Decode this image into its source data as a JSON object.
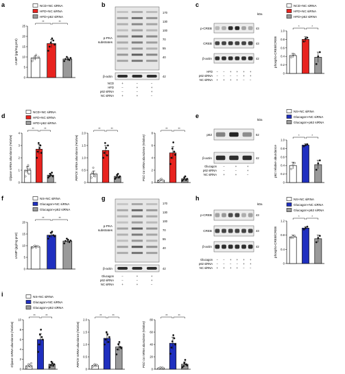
{
  "colors": {
    "white_bar": "#ffffff",
    "red": "#e8231f",
    "blue": "#1f2fbf",
    "grey": "#9a9a9a",
    "ink": "#111111"
  },
  "panels": {
    "a": {
      "letter": "a",
      "legend": [
        "NCD+NC siRNA",
        "HFD+NC siRNA",
        "HFD+p62 siRNA"
      ],
      "ylabel": "cAMP (pg/mg prot)",
      "ticks": [
        "0",
        "5",
        "10",
        "15",
        "20",
        "25"
      ],
      "sig": [
        "**",
        "**"
      ]
    },
    "b": {
      "letter": "b",
      "blot_label": [
        "p-PKA",
        "substrates"
      ],
      "mw": [
        "170",
        "130",
        "100",
        "70",
        "55",
        "40"
      ],
      "actin_label": "β-actin",
      "actin_mw": "42",
      "conditions": [
        {
          "name": "NCD",
          "marks": [
            "+",
            "−",
            "−"
          ]
        },
        {
          "name": "HFD",
          "marks": [
            "−",
            "+",
            "+"
          ]
        },
        {
          "name": "p62 siRNA",
          "marks": [
            "−",
            "−",
            "+"
          ]
        },
        {
          "name": "NC siRNA",
          "marks": [
            "+",
            "+",
            "−"
          ]
        }
      ]
    },
    "c": {
      "letter": "c",
      "kda": "kDa",
      "bands": [
        "p-CREB",
        "CREB",
        "β-actin"
      ],
      "mw": [
        "43",
        "43",
        "42"
      ],
      "conditions": [
        {
          "name": "HFD",
          "marks": [
            "−",
            "−",
            "+",
            "+",
            "+",
            "+"
          ]
        },
        {
          "name": "p62 siRNA",
          "marks": [
            "−",
            "−",
            "−",
            "−",
            "+",
            "+"
          ]
        },
        {
          "name": "NC siRNA",
          "marks": [
            "+",
            "+",
            "+",
            "+",
            "−",
            "−"
          ]
        }
      ],
      "legend": [
        "NCD+NC siRNA",
        "HFD+NC siRNA",
        "HFD+p62 siRNA"
      ],
      "ylabel": "phospho-CREB/CREB",
      "ticks": [
        "0",
        "0.2",
        "0.4",
        "0.6",
        "0.8",
        "1.0"
      ],
      "sig": [
        "*",
        "*"
      ]
    },
    "d": {
      "letter": "d",
      "legend": [
        "NCD+NC siRNA",
        "HFD+NC siRNA",
        "HFD+p62 siRNA"
      ],
      "ylabels": [
        "Glipase mRNA abundance (relative)",
        "PEPCK mRNA abundance (relative)",
        "PGC-1α mRNA abundance (relative)"
      ],
      "ticks": [
        [
          "0",
          "1",
          "2",
          "3",
          "4"
        ],
        [
          "0",
          "0.5",
          "1.0",
          "1.5",
          "2.0"
        ],
        [
          "0",
          "2",
          "4",
          "6",
          "8"
        ]
      ],
      "sig": [
        "**",
        "**"
      ]
    },
    "e": {
      "letter": "e",
      "kda": "kDa",
      "bands": [
        "p62",
        "β-actin"
      ],
      "mw": [
        "52",
        "42"
      ],
      "conditions": [
        {
          "name": "Glucagon",
          "marks": [
            "−",
            "+",
            "+"
          ]
        },
        {
          "name": "p62 siRNA",
          "marks": [
            "−",
            "−",
            "+"
          ]
        },
        {
          "name": "NC siRNA",
          "marks": [
            "+",
            "+",
            "−"
          ]
        }
      ],
      "legend": [
        "NS+NC siRNA",
        "Glucagon+NC siRNA",
        "Glucagon+p62 siRNA"
      ],
      "ylabel": "p62 relative abundance",
      "ticks": [
        "0",
        "0.2",
        "0.4",
        "0.6",
        "0.8",
        "1.0"
      ],
      "sig": [
        "*",
        "*"
      ]
    },
    "f": {
      "letter": "f",
      "legend": [
        "NS+NC siRNA",
        "Glucagon+NC siRNA",
        "Glucagon+p62 siRNA"
      ],
      "ylabel": "cAMP (pg/mg prot)",
      "ticks": [
        "0",
        "5",
        "10",
        "15",
        "20"
      ],
      "sig": [
        "**",
        "**"
      ]
    },
    "g": {
      "letter": "g",
      "blot_label": [
        "p-PKA",
        "substrates"
      ],
      "mw": [
        "170",
        "130",
        "100",
        "70",
        "55",
        "40"
      ],
      "actin_label": "β-actin",
      "actin_mw": "42",
      "conditions": [
        {
          "name": "Glucagon",
          "marks": [
            "−",
            "+",
            "+"
          ]
        },
        {
          "name": "p62 siRNA",
          "marks": [
            "−",
            "−",
            "+"
          ]
        },
        {
          "name": "NC siRNA",
          "marks": [
            "+",
            "+",
            "−"
          ]
        }
      ]
    },
    "h": {
      "letter": "h",
      "kda": "kDa",
      "bands": [
        "p-CREB",
        "CREB",
        "β-actin"
      ],
      "mw": [
        "43",
        "43",
        "42"
      ],
      "conditions": [
        {
          "name": "Glucagon",
          "marks": [
            "−",
            "−",
            "+",
            "+",
            "+",
            "+"
          ]
        },
        {
          "name": "p62 siRNA",
          "marks": [
            "−",
            "−",
            "−",
            "−",
            "+",
            "+"
          ]
        },
        {
          "name": "NC siRNA",
          "marks": [
            "+",
            "+",
            "+",
            "+",
            "−",
            "−"
          ]
        }
      ],
      "legend": [
        "NS+NC siRNA",
        "Glucagon+NC siRNA",
        "Glucagon+p62 siRNA"
      ],
      "ylabel": "phospho-CREB/CREB",
      "ticks": [
        "0",
        "0.4",
        "0.8",
        "1.2"
      ],
      "sig": [
        "*",
        "*"
      ]
    },
    "i": {
      "letter": "i",
      "legend": [
        "NS+NC siRNA",
        "Glucagon+NC siRNA",
        "Glucagon+p62 siRNA"
      ],
      "ylabels": [
        "Glipase mRNA abundance (relative)",
        "PEPCK mRNA abundance (relative)",
        "PGC-1α mRNA abundance (relative)"
      ],
      "ticks": [
        [
          "0",
          "2",
          "4",
          "6",
          "8",
          "10"
        ],
        [
          "0",
          "0.5",
          "1.0",
          "1.5",
          "2.0"
        ],
        [
          "0",
          "20",
          "40",
          "60",
          "80"
        ]
      ],
      "sig": [
        "**",
        "**"
      ]
    }
  },
  "chart_data": [
    {
      "panel": "a",
      "type": "bar",
      "categories": [
        "NCD+NC siRNA",
        "HFD+NC siRNA",
        "HFD+p62 siRNA"
      ],
      "values": [
        9.5,
        16.5,
        9.0
      ],
      "errors": [
        1.0,
        2.0,
        0.8
      ],
      "points": [
        [
          8,
          9,
          10,
          11,
          9.5,
          10
        ],
        [
          13,
          15,
          17,
          19,
          18,
          16
        ],
        [
          8,
          9,
          10,
          9,
          8.5,
          9.5
        ]
      ],
      "ylim": [
        0,
        25
      ],
      "ylabel": "cAMP (pg/mg prot)",
      "colors": [
        "#ffffff",
        "#e8231f",
        "#9a9a9a"
      ]
    },
    {
      "panel": "c",
      "type": "bar",
      "categories": [
        "NCD+NC siRNA",
        "HFD+NC siRNA",
        "HFD+p62 siRNA"
      ],
      "values": [
        0.42,
        0.8,
        0.38
      ],
      "errors": [
        0.05,
        0.06,
        0.12
      ],
      "points": [
        [
          0.38,
          0.45,
          0.44
        ],
        [
          0.75,
          0.82,
          0.84
        ],
        [
          0.22,
          0.4,
          0.5
        ]
      ],
      "ylim": [
        0,
        1.0
      ],
      "ylabel": "phospho-CREB/CREB",
      "colors": [
        "#ffffff",
        "#e8231f",
        "#9a9a9a"
      ]
    },
    {
      "panel": "d1",
      "type": "bar",
      "categories": [
        "NCD+NC siRNA",
        "HFD+NC siRNA",
        "HFD+p62 siRNA"
      ],
      "values": [
        1.0,
        2.7,
        0.6
      ],
      "errors": [
        0.3,
        0.4,
        0.15
      ],
      "points": [
        [
          0.5,
          0.9,
          1.2,
          1.4,
          0.7,
          1.1
        ],
        [
          2.0,
          2.5,
          3.2,
          2.8,
          3.0,
          2.4
        ],
        [
          0.4,
          0.5,
          0.7,
          0.6,
          0.8,
          0.5
        ]
      ],
      "ylim": [
        0,
        4
      ],
      "ylabel": "Glipase mRNA abundance (relative)",
      "colors": [
        "#ffffff",
        "#e8231f",
        "#9a9a9a"
      ]
    },
    {
      "panel": "d2",
      "type": "bar",
      "categories": [
        "NCD+NC siRNA",
        "HFD+NC siRNA",
        "HFD+p62 siRNA"
      ],
      "values": [
        0.35,
        1.3,
        0.25
      ],
      "errors": [
        0.12,
        0.2,
        0.08
      ],
      "points": [
        [
          0.2,
          0.4,
          0.6,
          0.3,
          0.25,
          0.35
        ],
        [
          1.0,
          1.2,
          1.6,
          1.4,
          1.1,
          1.5
        ],
        [
          0.15,
          0.2,
          0.3,
          0.35,
          0.2,
          0.25
        ]
      ],
      "ylim": [
        0,
        2.0
      ],
      "ylabel": "PEPCK mRNA abundance (relative)",
      "colors": [
        "#ffffff",
        "#e8231f",
        "#9a9a9a"
      ]
    },
    {
      "panel": "d3",
      "type": "bar",
      "categories": [
        "NCD+NC siRNA",
        "HFD+NC siRNA",
        "HFD+p62 siRNA"
      ],
      "values": [
        0.4,
        4.8,
        0.6
      ],
      "errors": [
        0.15,
        1.0,
        0.3
      ],
      "points": [
        [
          0.2,
          0.3,
          0.5,
          0.6,
          0.4,
          0.3
        ],
        [
          3.0,
          4.0,
          5.5,
          6.5,
          5.0,
          4.5
        ],
        [
          0.3,
          0.5,
          0.8,
          1.0,
          0.4,
          0.6
        ]
      ],
      "ylim": [
        0,
        8
      ],
      "ylabel": "PGC-1α mRNA abundance (relative)",
      "colors": [
        "#ffffff",
        "#e8231f",
        "#9a9a9a"
      ]
    },
    {
      "panel": "e",
      "type": "bar",
      "categories": [
        "NS+NC siRNA",
        "Glucagon+NC siRNA",
        "Glucagon+p62 siRNA"
      ],
      "values": [
        0.4,
        0.88,
        0.42
      ],
      "errors": [
        0.08,
        0.03,
        0.1
      ],
      "points": [
        [
          0.32,
          0.42,
          0.46
        ],
        [
          0.85,
          0.88,
          0.9
        ],
        [
          0.3,
          0.45,
          0.52
        ]
      ],
      "ylim": [
        0,
        1.0
      ],
      "ylabel": "p62 relative abundance",
      "colors": [
        "#ffffff",
        "#1f2fbf",
        "#9a9a9a"
      ]
    },
    {
      "panel": "f",
      "type": "bar",
      "categories": [
        "NS+NC siRNA",
        "Glucagon+NC siRNA",
        "Glucagon+p62 siRNA"
      ],
      "values": [
        9.5,
        14.5,
        12.0
      ],
      "errors": [
        0.5,
        1.0,
        0.8
      ],
      "points": [
        [
          9,
          9.5,
          10,
          9.2,
          9.8,
          9.6
        ],
        [
          13,
          14,
          15.5,
          16,
          14.5,
          14
        ],
        [
          11,
          12,
          13,
          12.5,
          11.5,
          12.2
        ]
      ],
      "ylim": [
        0,
        20
      ],
      "ylabel": "cAMP (pg/mg prot)",
      "colors": [
        "#ffffff",
        "#1f2fbf",
        "#9a9a9a"
      ]
    },
    {
      "panel": "h",
      "type": "bar",
      "categories": [
        "NS+NC siRNA",
        "Glucagon+NC siRNA",
        "Glucagon+p62 siRNA"
      ],
      "values": [
        0.75,
        1.0,
        0.7
      ],
      "errors": [
        0.05,
        0.04,
        0.1
      ],
      "points": [
        [
          0.72,
          0.76,
          0.78
        ],
        [
          0.96,
          1.0,
          1.04
        ],
        [
          0.6,
          0.72,
          0.78
        ]
      ],
      "ylim": [
        0,
        1.2
      ],
      "ylabel": "phospho-CREB/CREB",
      "colors": [
        "#ffffff",
        "#1f2fbf",
        "#9a9a9a"
      ]
    },
    {
      "panel": "i1",
      "type": "bar",
      "categories": [
        "NS+NC siRNA",
        "Glucagon+NC siRNA",
        "Glucagon+p62 siRNA"
      ],
      "values": [
        0.7,
        6.0,
        1.0
      ],
      "errors": [
        0.3,
        1.2,
        0.5
      ],
      "points": [
        [
          0.3,
          0.6,
          1.0,
          0.8,
          0.5,
          1.2
        ],
        [
          3.5,
          5.0,
          7.0,
          8.0,
          6.5,
          6.0
        ],
        [
          0.4,
          0.8,
          1.5,
          1.2,
          0.7,
          1.0
        ]
      ],
      "ylim": [
        0,
        10
      ],
      "ylabel": "Glipase mRNA abundance (relative)",
      "colors": [
        "#ffffff",
        "#1f2fbf",
        "#9a9a9a"
      ]
    },
    {
      "panel": "i2",
      "type": "bar",
      "categories": [
        "NS+NC siRNA",
        "Glucagon+NC siRNA",
        "Glucagon+p62 siRNA"
      ],
      "values": [
        0.15,
        1.25,
        0.9
      ],
      "errors": [
        0.05,
        0.2,
        0.15
      ],
      "points": [
        [
          0.1,
          0.15,
          0.2,
          0.12,
          0.18,
          0.15
        ],
        [
          1.0,
          1.2,
          1.5,
          1.4,
          1.1,
          1.3
        ],
        [
          0.6,
          0.8,
          1.0,
          1.1,
          0.9,
          0.85
        ]
      ],
      "ylim": [
        0,
        2.0
      ],
      "ylabel": "PEPCK mRNA abundance (relative)",
      "colors": [
        "#ffffff",
        "#1f2fbf",
        "#9a9a9a"
      ]
    },
    {
      "panel": "i3",
      "type": "bar",
      "categories": [
        "NS+NC siRNA",
        "Glucagon+NC siRNA",
        "Glucagon+p62 siRNA"
      ],
      "values": [
        2.0,
        42.0,
        8.0
      ],
      "errors": [
        1.0,
        10.0,
        4.0
      ],
      "points": [
        [
          1,
          2,
          3,
          1.5,
          2.5,
          2
        ],
        [
          25,
          35,
          45,
          55,
          50,
          40
        ],
        [
          3,
          5,
          10,
          15,
          8,
          6
        ]
      ],
      "ylim": [
        0,
        80
      ],
      "ylabel": "PGC-1α mRNA abundance (relative)",
      "colors": [
        "#ffffff",
        "#1f2fbf",
        "#9a9a9a"
      ]
    }
  ]
}
